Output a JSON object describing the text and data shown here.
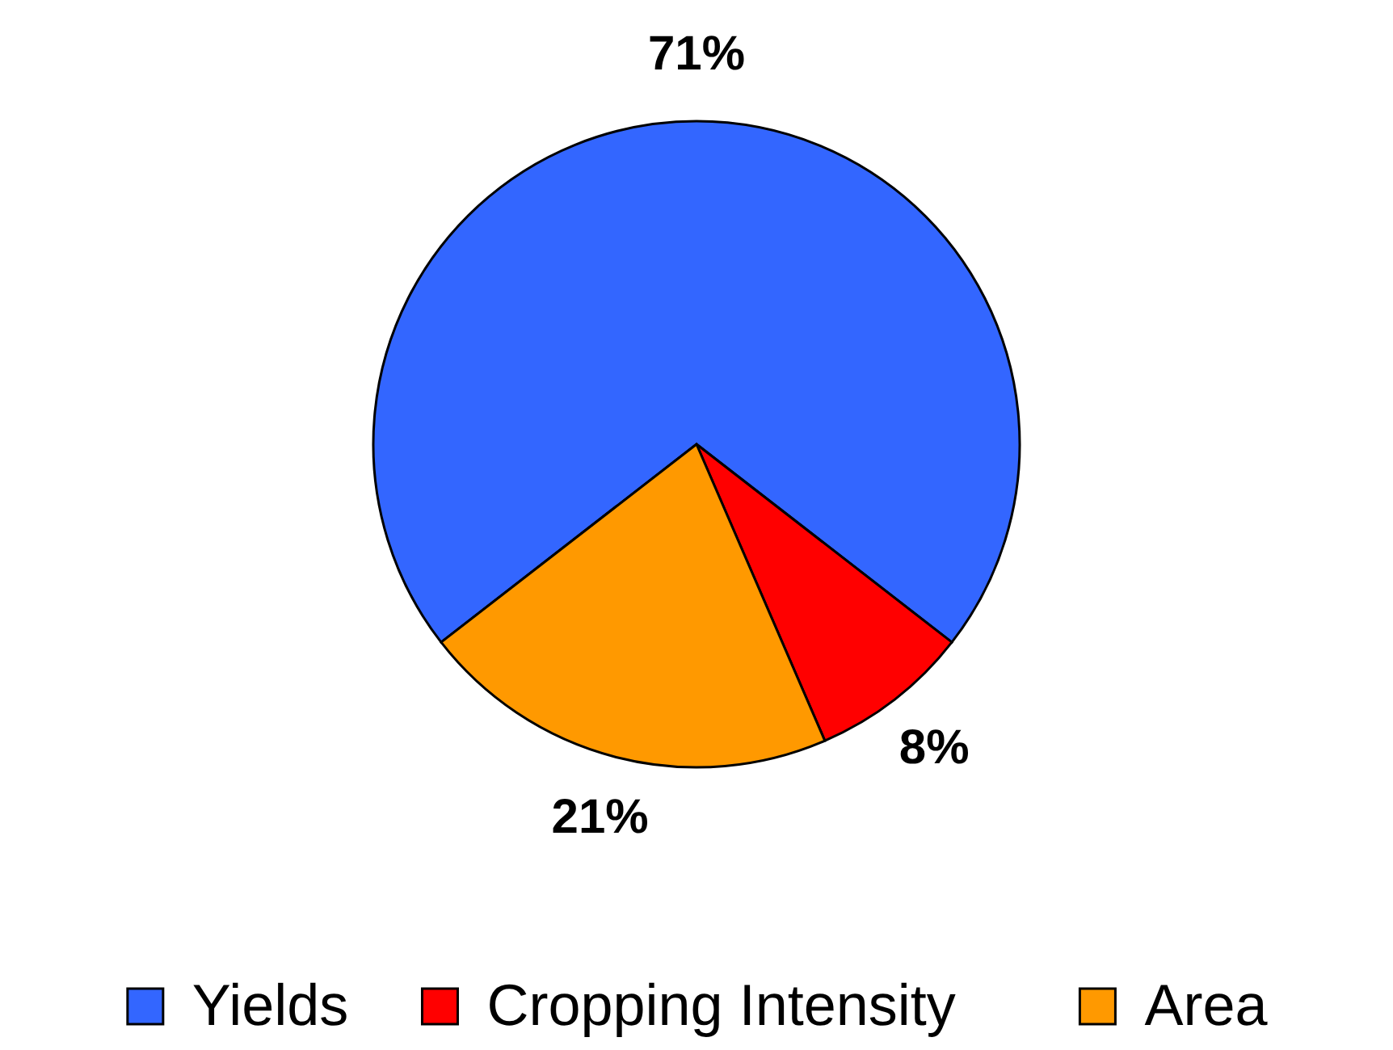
{
  "chart_data": {
    "type": "pie",
    "categories": [
      "Yields",
      "Cropping Intensity",
      "Area"
    ],
    "values": [
      71,
      8,
      21
    ],
    "colors": [
      "#3366ff",
      "#ff0000",
      "#ff9900"
    ],
    "value_labels": [
      "71%",
      "8%",
      "21%"
    ],
    "legend": "bottom"
  }
}
